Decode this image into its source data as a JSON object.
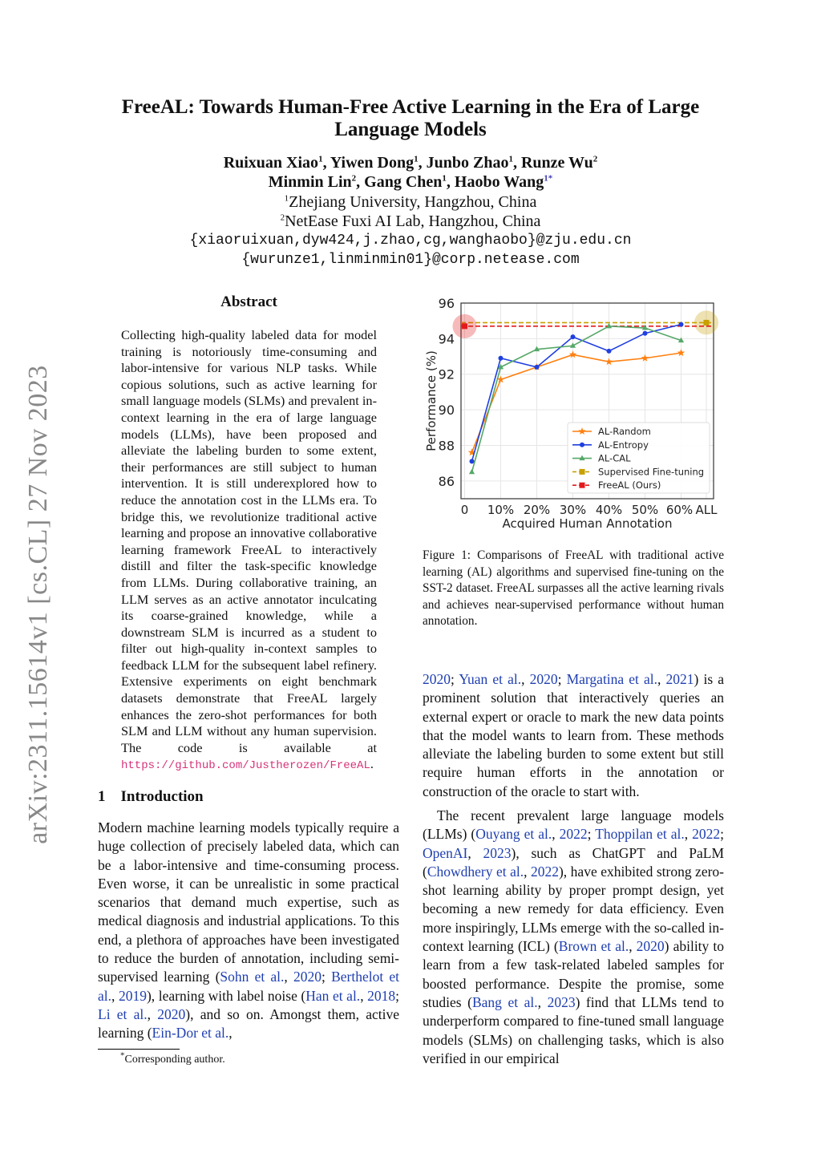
{
  "sidebar_stamp": "arXiv:2311.15614v1  [cs.CL]  27 Nov 2023",
  "header": {
    "title": "FreeAL: Towards Human-Free Active Learning in the Era of Large Language Models",
    "authors_line1": [
      {
        "name": "Ruixuan Xiao",
        "sup": "1"
      },
      {
        "name": "Yiwen Dong",
        "sup": "1"
      },
      {
        "name": "Junbo Zhao",
        "sup": "1"
      },
      {
        "name": "Runze Wu",
        "sup": "2"
      }
    ],
    "authors_line2": [
      {
        "name": "Minmin Lin",
        "sup": "2"
      },
      {
        "name": "Gang Chen",
        "sup": "1"
      },
      {
        "name": "Haobo Wang",
        "sup": "1*"
      }
    ],
    "affiliation1": {
      "sup": "1",
      "text": "Zhejiang University, Hangzhou, China"
    },
    "affiliation2": {
      "sup": "2",
      "text": "NetEase Fuxi AI Lab, Hangzhou, China"
    },
    "email1": "{xiaoruixuan,dyw424,j.zhao,cg,wanghaobo}@zju.edu.cn",
    "email2": "{wurunze1,linminmin01}@corp.netease.com"
  },
  "abstract": {
    "heading": "Abstract",
    "text": "Collecting high-quality labeled data for model training is notoriously time-consuming and labor-intensive for various NLP tasks. While copious solutions, such as active learning for small language models (SLMs) and prevalent in-context learning in the era of large language models (LLMs), have been proposed and alleviate the labeling burden to some extent, their performances are still subject to human intervention. It is still underexplored how to reduce the annotation cost in the LLMs era. To bridge this, we revolutionize traditional active learning and propose an innovative collaborative learning framework FreeAL to interactively distill and filter the task-specific knowledge from LLMs. During collaborative training, an LLM serves as an active annotator inculcating its coarse-grained knowledge, while a downstream SLM is incurred as a student to filter out high-quality in-context samples to feedback LLM for the subsequent label refinery. Extensive experiments on eight benchmark datasets demonstrate that FreeAL largely enhances the zero-shot performances for both SLM and LLM without any human supervision. The code is available at ",
    "url": "https://github.com/Justherozen/FreeAL",
    "end": "."
  },
  "intro": {
    "number": "1",
    "heading": "Introduction",
    "paragraph": [
      {
        "t": "Modern machine learning models typically require a huge collection of precisely labeled data, which can be a labor-intensive and time-consuming process. Even worse, it can be unrealistic in some practical scenarios that demand much expertise, such as medical diagnosis and industrial applications. To this end, a plethora of approaches have been investigated to reduce the burden of annotation, including semi-supervised learning ("
      },
      {
        "t": "Sohn et al.",
        "link": true
      },
      {
        "t": ", "
      },
      {
        "t": "2020",
        "link": true
      },
      {
        "t": "; "
      },
      {
        "t": "Berthelot et al.",
        "link": true
      },
      {
        "t": ", "
      },
      {
        "t": "2019",
        "link": true
      },
      {
        "t": "), learning with label noise ("
      },
      {
        "t": "Han et al.",
        "link": true
      },
      {
        "t": ", "
      },
      {
        "t": "2018",
        "link": true
      },
      {
        "t": "; "
      },
      {
        "t": "Li et al.",
        "link": true
      },
      {
        "t": ", "
      },
      {
        "t": "2020",
        "link": true
      },
      {
        "t": "), and so on. Amongst them, active learning ("
      },
      {
        "t": "Ein-Dor et al.",
        "link": true
      },
      {
        "t": ","
      }
    ]
  },
  "footnote": {
    "mark": "*",
    "text": "Corresponding author."
  },
  "figure": {
    "caption": "Figure 1: Comparisons of FreeAL with traditional active learning (AL) algorithms and supervised fine-tuning on the SST-2 dataset. FreeAL surpasses all the active learning rivals and achieves near-supervised performance without human annotation."
  },
  "chart_data": {
    "type": "line",
    "title": "",
    "xlabel": "Acquired Human Annotation",
    "ylabel": "Performance (%)",
    "xticks": [
      {
        "v": 0,
        "label": "0"
      },
      {
        "v": 10,
        "label": "10%"
      },
      {
        "v": 20,
        "label": "20%"
      },
      {
        "v": 30,
        "label": "30%"
      },
      {
        "v": 40,
        "label": "40%"
      },
      {
        "v": 50,
        "label": "50%"
      },
      {
        "v": 60,
        "label": "60%"
      },
      {
        "v": 67,
        "label": "ALL"
      }
    ],
    "yticks": [
      86,
      88,
      90,
      92,
      94,
      96
    ],
    "xlim": [
      -1,
      69
    ],
    "ylim": [
      85,
      96
    ],
    "grid": true,
    "legend": "bottom-right",
    "x": [
      2,
      10,
      20,
      30,
      40,
      50,
      60
    ],
    "series": [
      {
        "name": "AL-Random",
        "color": "#ff7f0e",
        "marker": "star",
        "values": [
          87.6,
          91.7,
          92.4,
          93.1,
          92.7,
          92.9,
          93.2
        ]
      },
      {
        "name": "AL-Entropy",
        "color": "#1f3fe0",
        "marker": "circle",
        "values": [
          87.1,
          92.9,
          92.4,
          94.1,
          93.3,
          94.3,
          94.8
        ]
      },
      {
        "name": "AL-CAL",
        "color": "#55a868",
        "marker": "triangle",
        "values": [
          86.5,
          92.4,
          93.4,
          93.6,
          94.7,
          94.6,
          93.9
        ]
      }
    ],
    "reference_lines": [
      {
        "name": "Supervised Fine-tuning",
        "color": "#c8a000",
        "value": 94.9,
        "marker_x": 67
      },
      {
        "name": "FreeAL (Ours)",
        "color": "#e31a1c",
        "value": 94.7,
        "marker_x": 0
      }
    ]
  },
  "right_column": {
    "paragraph1": [
      {
        "t": "2020",
        "link": true
      },
      {
        "t": "; "
      },
      {
        "t": "Yuan et al.",
        "link": true
      },
      {
        "t": ", "
      },
      {
        "t": "2020",
        "link": true
      },
      {
        "t": "; "
      },
      {
        "t": "Margatina et al.",
        "link": true
      },
      {
        "t": ", "
      },
      {
        "t": "2021",
        "link": true
      },
      {
        "t": ") is a prominent solution that interactively queries an external expert or oracle to mark the new data points that the model wants to learn from. These methods alleviate the labeling burden to some extent but still require human efforts in the annotation or construction of the oracle to start with."
      }
    ],
    "paragraph2": [
      {
        "t": "The recent prevalent large language models (LLMs) ("
      },
      {
        "t": "Ouyang et al.",
        "link": true
      },
      {
        "t": ", "
      },
      {
        "t": "2022",
        "link": true
      },
      {
        "t": "; "
      },
      {
        "t": "Thoppilan et al.",
        "link": true
      },
      {
        "t": ", "
      },
      {
        "t": "2022",
        "link": true
      },
      {
        "t": "; "
      },
      {
        "t": "OpenAI",
        "link": true
      },
      {
        "t": ", "
      },
      {
        "t": "2023",
        "link": true
      },
      {
        "t": "), such as ChatGPT and PaLM ("
      },
      {
        "t": "Chowdhery et al.",
        "link": true
      },
      {
        "t": ", "
      },
      {
        "t": "2022",
        "link": true
      },
      {
        "t": "), have exhibited strong zero-shot learning ability by proper prompt design, yet becoming a new remedy for data efficiency. Even more inspiringly, LLMs emerge with the so-called in-context learning (ICL) ("
      },
      {
        "t": "Brown et al.",
        "link": true
      },
      {
        "t": ", "
      },
      {
        "t": "2020",
        "link": true
      },
      {
        "t": ") ability to learn from a few task-related labeled samples for boosted performance. Despite the promise, some studies ("
      },
      {
        "t": "Bang et al.",
        "link": true
      },
      {
        "t": ", "
      },
      {
        "t": "2023",
        "link": true
      },
      {
        "t": ") find that LLMs tend to underperform compared to fine-tuned small language models (SLMs) on challenging tasks, which is also verified in our empirical"
      }
    ]
  }
}
